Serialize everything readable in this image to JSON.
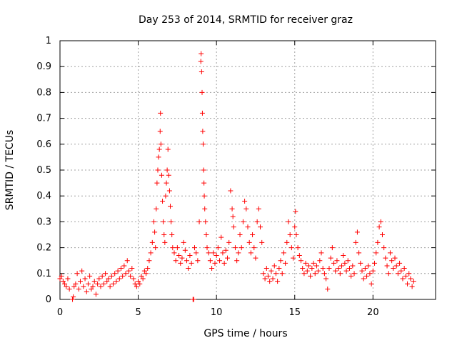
{
  "chart_data": {
    "type": "scatter",
    "title": "Day 253 of 2014, SRMTID for receiver graz",
    "xlabel": "GPS time / hours",
    "ylabel": "SRMTID / TECUs",
    "xlim": [
      0,
      24.0
    ],
    "ylim": [
      0,
      1
    ],
    "xticks": [
      0,
      5,
      10,
      15,
      20
    ],
    "xtick_labels": [
      "0",
      "5",
      "10",
      "15",
      "20"
    ],
    "yticks": [
      0,
      0.1,
      0.2,
      0.3,
      0.4,
      0.5,
      0.6,
      0.7,
      0.8,
      0.9,
      1
    ],
    "ytick_labels": [
      "0",
      "0.1",
      "0.2",
      "0.3",
      "0.4",
      "0.5",
      "0.6",
      "0.7",
      "0.8",
      "0.9",
      "1"
    ],
    "grid": true,
    "marker": "+",
    "series": [
      {
        "name": "SRMTID",
        "color": "#ff0000",
        "points": [
          [
            0.0,
            0.08
          ],
          [
            0.1,
            0.09
          ],
          [
            0.2,
            0.07
          ],
          [
            0.3,
            0.06
          ],
          [
            0.4,
            0.05
          ],
          [
            0.5,
            0.08
          ],
          [
            0.6,
            0.04
          ],
          [
            0.8,
            0.0
          ],
          [
            0.85,
            0.01
          ],
          [
            0.9,
            0.05
          ],
          [
            1.0,
            0.06
          ],
          [
            1.1,
            0.1
          ],
          [
            1.2,
            0.04
          ],
          [
            1.3,
            0.07
          ],
          [
            1.4,
            0.11
          ],
          [
            1.5,
            0.05
          ],
          [
            1.6,
            0.08
          ],
          [
            1.7,
            0.03
          ],
          [
            1.8,
            0.06
          ],
          [
            1.9,
            0.09
          ],
          [
            2.0,
            0.04
          ],
          [
            2.1,
            0.05
          ],
          [
            2.2,
            0.07
          ],
          [
            2.3,
            0.02
          ],
          [
            2.4,
            0.06
          ],
          [
            2.5,
            0.08
          ],
          [
            2.6,
            0.05
          ],
          [
            2.7,
            0.09
          ],
          [
            2.8,
            0.06
          ],
          [
            2.9,
            0.1
          ],
          [
            3.0,
            0.07
          ],
          [
            3.1,
            0.08
          ],
          [
            3.2,
            0.05
          ],
          [
            3.3,
            0.09
          ],
          [
            3.4,
            0.06
          ],
          [
            3.5,
            0.1
          ],
          [
            3.6,
            0.07
          ],
          [
            3.7,
            0.11
          ],
          [
            3.8,
            0.08
          ],
          [
            3.9,
            0.12
          ],
          [
            4.0,
            0.09
          ],
          [
            4.1,
            0.13
          ],
          [
            4.2,
            0.1
          ],
          [
            4.3,
            0.15
          ],
          [
            4.4,
            0.11
          ],
          [
            4.5,
            0.09
          ],
          [
            4.6,
            0.12
          ],
          [
            4.7,
            0.08
          ],
          [
            4.8,
            0.06
          ],
          [
            4.9,
            0.05
          ],
          [
            5.0,
            0.07
          ],
          [
            5.1,
            0.06
          ],
          [
            5.2,
            0.09
          ],
          [
            5.3,
            0.08
          ],
          [
            5.4,
            0.11
          ],
          [
            5.5,
            0.1
          ],
          [
            5.6,
            0.12
          ],
          [
            5.7,
            0.15
          ],
          [
            5.8,
            0.18
          ],
          [
            5.9,
            0.22
          ],
          [
            6.0,
            0.3
          ],
          [
            6.05,
            0.26
          ],
          [
            6.1,
            0.2
          ],
          [
            6.15,
            0.35
          ],
          [
            6.2,
            0.45
          ],
          [
            6.25,
            0.5
          ],
          [
            6.3,
            0.55
          ],
          [
            6.35,
            0.58
          ],
          [
            6.4,
            0.65
          ],
          [
            6.42,
            0.72
          ],
          [
            6.45,
            0.6
          ],
          [
            6.5,
            0.48
          ],
          [
            6.55,
            0.38
          ],
          [
            6.6,
            0.3
          ],
          [
            6.65,
            0.25
          ],
          [
            6.7,
            0.22
          ],
          [
            6.75,
            0.4
          ],
          [
            6.8,
            0.45
          ],
          [
            6.85,
            0.5
          ],
          [
            6.9,
            0.58
          ],
          [
            6.95,
            0.48
          ],
          [
            7.0,
            0.42
          ],
          [
            7.05,
            0.36
          ],
          [
            7.1,
            0.3
          ],
          [
            7.15,
            0.25
          ],
          [
            7.2,
            0.2
          ],
          [
            7.3,
            0.18
          ],
          [
            7.4,
            0.15
          ],
          [
            7.5,
            0.2
          ],
          [
            7.6,
            0.17
          ],
          [
            7.7,
            0.14
          ],
          [
            7.8,
            0.16
          ],
          [
            7.9,
            0.22
          ],
          [
            8.0,
            0.19
          ],
          [
            8.1,
            0.15
          ],
          [
            8.2,
            0.12
          ],
          [
            8.3,
            0.17
          ],
          [
            8.4,
            0.14
          ],
          [
            8.5,
            0.0
          ],
          [
            8.55,
            0.0
          ],
          [
            8.6,
            0.2
          ],
          [
            8.7,
            0.18
          ],
          [
            8.8,
            0.15
          ],
          [
            8.9,
            0.3
          ],
          [
            9.0,
            0.92
          ],
          [
            9.02,
            0.95
          ],
          [
            9.05,
            0.88
          ],
          [
            9.08,
            0.8
          ],
          [
            9.1,
            0.72
          ],
          [
            9.12,
            0.65
          ],
          [
            9.15,
            0.6
          ],
          [
            9.18,
            0.5
          ],
          [
            9.2,
            0.45
          ],
          [
            9.22,
            0.4
          ],
          [
            9.25,
            0.35
          ],
          [
            9.3,
            0.3
          ],
          [
            9.35,
            0.25
          ],
          [
            9.4,
            0.2
          ],
          [
            9.5,
            0.18
          ],
          [
            9.6,
            0.15
          ],
          [
            9.7,
            0.12
          ],
          [
            9.8,
            0.18
          ],
          [
            9.9,
            0.14
          ],
          [
            10.0,
            0.17
          ],
          [
            10.1,
            0.2
          ],
          [
            10.2,
            0.15
          ],
          [
            10.3,
            0.24
          ],
          [
            10.4,
            0.18
          ],
          [
            10.5,
            0.14
          ],
          [
            10.6,
            0.19
          ],
          [
            10.7,
            0.16
          ],
          [
            10.8,
            0.22
          ],
          [
            10.9,
            0.42
          ],
          [
            11.0,
            0.35
          ],
          [
            11.05,
            0.32
          ],
          [
            11.1,
            0.28
          ],
          [
            11.2,
            0.2
          ],
          [
            11.3,
            0.15
          ],
          [
            11.4,
            0.18
          ],
          [
            11.5,
            0.25
          ],
          [
            11.6,
            0.2
          ],
          [
            11.7,
            0.3
          ],
          [
            11.8,
            0.38
          ],
          [
            11.9,
            0.35
          ],
          [
            12.0,
            0.28
          ],
          [
            12.1,
            0.22
          ],
          [
            12.2,
            0.18
          ],
          [
            12.3,
            0.25
          ],
          [
            12.4,
            0.2
          ],
          [
            12.5,
            0.16
          ],
          [
            12.6,
            0.3
          ],
          [
            12.7,
            0.35
          ],
          [
            12.8,
            0.28
          ],
          [
            12.9,
            0.22
          ],
          [
            13.0,
            0.1
          ],
          [
            13.1,
            0.08
          ],
          [
            13.2,
            0.12
          ],
          [
            13.3,
            0.09
          ],
          [
            13.4,
            0.07
          ],
          [
            13.5,
            0.11
          ],
          [
            13.6,
            0.08
          ],
          [
            13.7,
            0.13
          ],
          [
            13.8,
            0.1
          ],
          [
            13.9,
            0.07
          ],
          [
            14.0,
            0.12
          ],
          [
            14.1,
            0.15
          ],
          [
            14.2,
            0.1
          ],
          [
            14.3,
            0.18
          ],
          [
            14.4,
            0.14
          ],
          [
            14.5,
            0.22
          ],
          [
            14.6,
            0.3
          ],
          [
            14.7,
            0.25
          ],
          [
            14.8,
            0.2
          ],
          [
            14.9,
            0.16
          ],
          [
            15.0,
            0.28
          ],
          [
            15.05,
            0.34
          ],
          [
            15.1,
            0.25
          ],
          [
            15.2,
            0.2
          ],
          [
            15.3,
            0.17
          ],
          [
            15.4,
            0.15
          ],
          [
            15.5,
            0.12
          ],
          [
            15.6,
            0.1
          ],
          [
            15.7,
            0.14
          ],
          [
            15.8,
            0.11
          ],
          [
            15.9,
            0.13
          ],
          [
            16.0,
            0.09
          ],
          [
            16.1,
            0.12
          ],
          [
            16.2,
            0.14
          ],
          [
            16.3,
            0.1
          ],
          [
            16.4,
            0.13
          ],
          [
            16.5,
            0.11
          ],
          [
            16.6,
            0.15
          ],
          [
            16.7,
            0.18
          ],
          [
            16.8,
            0.12
          ],
          [
            16.9,
            0.1
          ],
          [
            17.0,
            0.08
          ],
          [
            17.1,
            0.04
          ],
          [
            17.2,
            0.12
          ],
          [
            17.3,
            0.16
          ],
          [
            17.4,
            0.2
          ],
          [
            17.5,
            0.14
          ],
          [
            17.6,
            0.11
          ],
          [
            17.7,
            0.15
          ],
          [
            17.8,
            0.12
          ],
          [
            17.9,
            0.1
          ],
          [
            18.0,
            0.13
          ],
          [
            18.1,
            0.17
          ],
          [
            18.2,
            0.14
          ],
          [
            18.3,
            0.11
          ],
          [
            18.4,
            0.15
          ],
          [
            18.5,
            0.12
          ],
          [
            18.6,
            0.09
          ],
          [
            18.7,
            0.13
          ],
          [
            18.8,
            0.1
          ],
          [
            18.9,
            0.22
          ],
          [
            19.0,
            0.26
          ],
          [
            19.1,
            0.18
          ],
          [
            19.2,
            0.14
          ],
          [
            19.3,
            0.11
          ],
          [
            19.4,
            0.08
          ],
          [
            19.5,
            0.12
          ],
          [
            19.6,
            0.09
          ],
          [
            19.7,
            0.13
          ],
          [
            19.8,
            0.1
          ],
          [
            19.9,
            0.06
          ],
          [
            20.0,
            0.11
          ],
          [
            20.1,
            0.14
          ],
          [
            20.2,
            0.18
          ],
          [
            20.3,
            0.22
          ],
          [
            20.4,
            0.28
          ],
          [
            20.5,
            0.3
          ],
          [
            20.6,
            0.25
          ],
          [
            20.7,
            0.2
          ],
          [
            20.8,
            0.16
          ],
          [
            20.9,
            0.13
          ],
          [
            21.0,
            0.1
          ],
          [
            21.1,
            0.18
          ],
          [
            21.2,
            0.15
          ],
          [
            21.3,
            0.12
          ],
          [
            21.4,
            0.16
          ],
          [
            21.5,
            0.13
          ],
          [
            21.6,
            0.1
          ],
          [
            21.7,
            0.14
          ],
          [
            21.8,
            0.11
          ],
          [
            21.9,
            0.08
          ],
          [
            22.0,
            0.12
          ],
          [
            22.1,
            0.09
          ],
          [
            22.2,
            0.06
          ],
          [
            22.3,
            0.1
          ],
          [
            22.4,
            0.08
          ],
          [
            22.5,
            0.05
          ],
          [
            22.6,
            0.07
          ]
        ]
      }
    ]
  }
}
